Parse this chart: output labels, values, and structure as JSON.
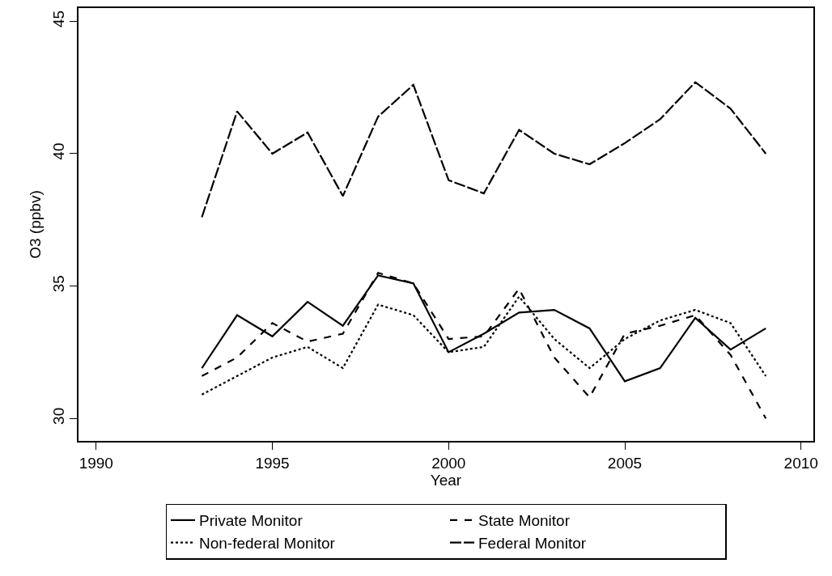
{
  "chart_data": {
    "type": "line",
    "xlabel": "Year",
    "ylabel": "O3 (ppbv)",
    "x": [
      1993,
      1994,
      1995,
      1996,
      1997,
      1998,
      1999,
      2000,
      2001,
      2002,
      2003,
      2004,
      2005,
      2006,
      2007,
      2008,
      2009
    ],
    "series": [
      {
        "name": "Private Monitor",
        "color": "#000000",
        "line_style": "solid",
        "values": [
          31.9,
          33.9,
          33.1,
          34.4,
          33.5,
          35.4,
          35.1,
          32.5,
          33.2,
          34.0,
          34.1,
          33.4,
          31.4,
          31.9,
          33.8,
          32.6,
          33.4
        ]
      },
      {
        "name": "State Monitor",
        "color": "#000000",
        "line_style": "dashed",
        "values": [
          31.6,
          32.3,
          33.6,
          32.9,
          33.2,
          35.5,
          35.1,
          33.0,
          33.1,
          34.9,
          32.3,
          30.8,
          33.2,
          33.5,
          33.9,
          32.4,
          30.0
        ]
      },
      {
        "name": "Non-federal Monitor",
        "color": "#000000",
        "line_style": "dotted",
        "values": [
          30.9,
          31.6,
          32.3,
          32.7,
          31.9,
          34.3,
          33.9,
          32.5,
          32.7,
          34.6,
          33.0,
          31.9,
          33.0,
          33.7,
          34.1,
          33.6,
          31.6
        ]
      },
      {
        "name": "Federal Monitor",
        "color": "#000000",
        "line_style": "longdash",
        "values": [
          37.6,
          41.6,
          40.0,
          40.8,
          38.4,
          41.4,
          42.6,
          39.0,
          38.5,
          40.9,
          40.0,
          39.6,
          40.4,
          41.3,
          42.7,
          41.7,
          40.0
        ]
      }
    ],
    "xlim": [
      1989.5,
      2010.35
    ],
    "xticks": [
      1990,
      1995,
      2000,
      2005,
      2010
    ],
    "ylim": [
      29.15,
      45.5
    ],
    "yticks": [
      30,
      35,
      40,
      45
    ],
    "grid": false,
    "legend": "bottom",
    "marker": "none"
  }
}
